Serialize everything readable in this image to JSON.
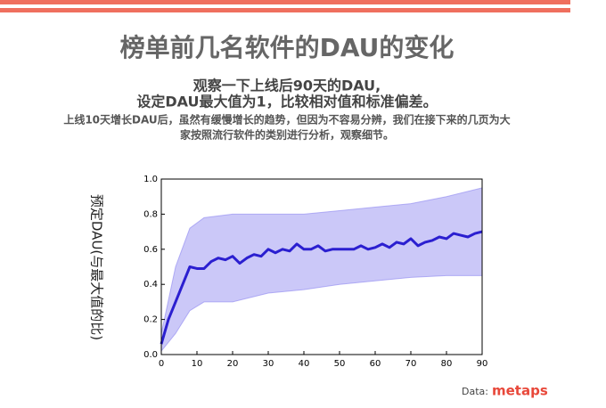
{
  "chart_data": {
    "type": "line",
    "title": "榜单前几名软件的DAU的变化",
    "subtitle": [
      "观察一下上线后90天的DAU,",
      "设定DAU最大值为1，比较相对值和标准偏差。"
    ],
    "notes": [
      "上线10天增长DAU后，虽然有缓慢增长的趋势，但因为不容易分辨，我们在接下来的几页为大",
      "家按照流行软件的类别进行分析，观察细节。"
    ],
    "ylabel": "预定DAU(与最大值的比)",
    "source_label": "Data:",
    "source_brand": "metaps",
    "color": "#2b1fd0",
    "x": [
      0,
      2,
      4,
      6,
      8,
      10,
      12,
      14,
      16,
      18,
      20,
      22,
      24,
      26,
      28,
      30,
      32,
      34,
      36,
      38,
      40,
      42,
      44,
      46,
      48,
      50,
      52,
      54,
      56,
      58,
      60,
      62,
      64,
      66,
      68,
      70,
      72,
      74,
      76,
      78,
      80,
      82,
      84,
      86,
      88,
      90
    ],
    "values": [
      0.06,
      0.2,
      0.3,
      0.4,
      0.5,
      0.49,
      0.49,
      0.53,
      0.55,
      0.54,
      0.56,
      0.52,
      0.55,
      0.57,
      0.56,
      0.6,
      0.58,
      0.6,
      0.59,
      0.63,
      0.6,
      0.6,
      0.62,
      0.59,
      0.6,
      0.6,
      0.6,
      0.6,
      0.62,
      0.6,
      0.61,
      0.63,
      0.61,
      0.64,
      0.63,
      0.66,
      0.62,
      0.64,
      0.65,
      0.67,
      0.66,
      0.69,
      0.68,
      0.67,
      0.69,
      0.7
    ],
    "band_color": "#8c86f0",
    "band_x": [
      0,
      4,
      8,
      12,
      20,
      30,
      40,
      50,
      60,
      70,
      80,
      90
    ],
    "band_upper": [
      0.12,
      0.5,
      0.72,
      0.78,
      0.8,
      0.8,
      0.8,
      0.82,
      0.84,
      0.86,
      0.9,
      0.95
    ],
    "band_lower": [
      0.02,
      0.12,
      0.25,
      0.3,
      0.3,
      0.35,
      0.37,
      0.4,
      0.42,
      0.44,
      0.45,
      0.45
    ],
    "xlim": [
      0,
      90
    ],
    "xticks": [
      0,
      10,
      20,
      30,
      40,
      50,
      60,
      70,
      80,
      90
    ],
    "ylim": [
      0,
      1
    ],
    "yticks": [
      {
        "value": 0,
        "label": "0.0"
      },
      {
        "value": 0.2,
        "label": "0.2"
      },
      {
        "value": 0.4,
        "label": "0.4"
      },
      {
        "value": 0.6,
        "label": "0.6"
      },
      {
        "value": 0.8,
        "label": "0.8"
      },
      {
        "value": 1,
        "label": "1.0"
      }
    ]
  }
}
